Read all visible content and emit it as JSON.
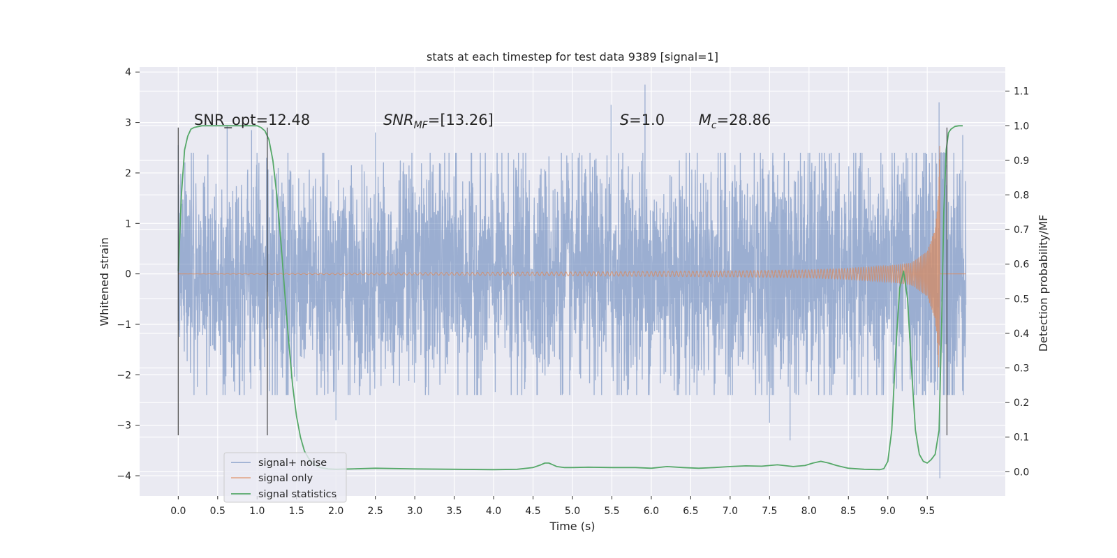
{
  "chart_data": {
    "type": "line",
    "title": "stats at each timestep for test data 9389 [signal=1]",
    "xlabel": "Time (s)",
    "ylabel": "Whitened strain",
    "y2label": "Detection probability/MF",
    "xlim": [
      -0.49,
      10.49
    ],
    "ylim": [
      -4.4,
      4.1
    ],
    "y2lim": [
      -0.07,
      1.17
    ],
    "xticks": [
      0.0,
      0.5,
      1.0,
      1.5,
      2.0,
      2.5,
      3.0,
      3.5,
      4.0,
      4.5,
      5.0,
      5.5,
      6.0,
      6.5,
      7.0,
      7.5,
      8.0,
      8.5,
      9.0,
      9.5
    ],
    "xtick_labels": [
      "0.0",
      "0.5",
      "1.0",
      "1.5",
      "2.0",
      "2.5",
      "3.0",
      "3.5",
      "4.0",
      "4.5",
      "5.0",
      "5.5",
      "6.0",
      "6.5",
      "7.0",
      "7.5",
      "8.0",
      "8.5",
      "9.0",
      "9.5"
    ],
    "yticks": [
      -4,
      -3,
      -2,
      -1,
      0,
      1,
      2,
      3,
      4
    ],
    "ytick_labels": [
      "−4",
      "−3",
      "−2",
      "−1",
      "0",
      "1",
      "2",
      "3",
      "4"
    ],
    "y2ticks": [
      0.0,
      0.1,
      0.2,
      0.3,
      0.4,
      0.5,
      0.6,
      0.7,
      0.8,
      0.9,
      1.0,
      1.1
    ],
    "y2tick_labels": [
      "0.0",
      "0.1",
      "0.2",
      "0.3",
      "0.4",
      "0.5",
      "0.6",
      "0.7",
      "0.8",
      "0.9",
      "1.0",
      "1.1"
    ],
    "grid": true,
    "legend_position": "lower-left",
    "annotations": [
      {
        "text": "SNR_opt=12.48",
        "x": 0.2,
        "y": 2.95
      },
      {
        "text": "SNR",
        "sub": "MF",
        "after": "=[13.26]",
        "italic": true,
        "x": 2.6,
        "y": 2.95
      },
      {
        "text": "S",
        "after": "=1.0",
        "italic": true,
        "x": 5.6,
        "y": 2.95
      },
      {
        "text": "M",
        "sub": "c",
        "after": "=28.86",
        "italic": true,
        "x": 6.6,
        "y": 2.95
      }
    ],
    "vlines": [
      {
        "x": 0.0,
        "ymin": -3.2,
        "ymax": 2.9
      },
      {
        "x": 1.13,
        "ymin": -3.2,
        "ymax": 2.9
      },
      {
        "x": 9.75,
        "ymin": -3.2,
        "ymax": 2.9
      }
    ],
    "series": [
      {
        "name": "signal+ noise",
        "color": "#4c72b0",
        "axis": "left",
        "x_range": [
          0.0,
          9.99
        ],
        "amplitude_envelope": {
          "x": [
            0.0,
            1.4,
            4.5,
            6.5,
            8.5,
            9.3,
            9.55,
            9.65,
            9.99
          ],
          "y": [
            2.0,
            2.0,
            2.0,
            2.1,
            2.2,
            2.3,
            2.6,
            3.3,
            2.0
          ]
        },
        "peaks": [
          {
            "x": 0.0,
            "y": 2.55
          },
          {
            "x": 0.62,
            "y": 2.95
          },
          {
            "x": 0.93,
            "y": 2.85
          },
          {
            "x": 2.0,
            "y": -2.9
          },
          {
            "x": 2.5,
            "y": 2.8
          },
          {
            "x": 5.49,
            "y": 3.35
          },
          {
            "x": 5.92,
            "y": 3.75
          },
          {
            "x": 7.5,
            "y": -2.95
          },
          {
            "x": 7.76,
            "y": -3.3
          },
          {
            "x": 9.65,
            "y": 3.4
          },
          {
            "x": 9.66,
            "y": -4.05
          },
          {
            "x": 9.95,
            "y": 2.75
          }
        ]
      },
      {
        "name": "signal only",
        "color": "#dd8452",
        "axis": "left",
        "model": "chirp",
        "t_merger": 9.66,
        "envelope": {
          "x": [
            0.0,
            5.0,
            7.0,
            8.0,
            8.5,
            9.0,
            9.3,
            9.5,
            9.6,
            9.63,
            9.66,
            9.68,
            9.99
          ],
          "y": [
            0.0,
            0.04,
            0.06,
            0.08,
            0.11,
            0.16,
            0.22,
            0.45,
            0.9,
            1.4,
            2.6,
            0.0,
            0.0
          ]
        }
      },
      {
        "name": "signal statistics",
        "color": "#55a868",
        "axis": "right",
        "x": [
          0.0,
          0.04,
          0.08,
          0.12,
          0.16,
          0.2,
          0.3,
          0.4,
          0.5,
          0.6,
          0.7,
          0.8,
          0.9,
          1.0,
          1.05,
          1.1,
          1.15,
          1.2,
          1.25,
          1.3,
          1.35,
          1.4,
          1.45,
          1.5,
          1.55,
          1.6,
          1.65,
          1.7,
          1.75,
          1.8,
          1.9,
          2.0,
          2.2,
          2.5,
          3.0,
          3.5,
          4.0,
          4.3,
          4.5,
          4.6,
          4.65,
          4.7,
          4.75,
          4.8,
          4.9,
          5.0,
          5.2,
          5.5,
          5.8,
          6.0,
          6.2,
          6.4,
          6.6,
          6.8,
          7.0,
          7.2,
          7.4,
          7.6,
          7.8,
          7.95,
          8.05,
          8.15,
          8.25,
          8.35,
          8.5,
          8.7,
          8.9,
          8.95,
          9.0,
          9.05,
          9.1,
          9.15,
          9.2,
          9.25,
          9.3,
          9.35,
          9.4,
          9.45,
          9.5,
          9.55,
          9.6,
          9.65,
          9.68,
          9.71,
          9.74,
          9.77,
          9.8,
          9.85,
          9.9,
          9.95
        ],
        "y": [
          0.58,
          0.8,
          0.93,
          0.97,
          0.99,
          0.995,
          1.0,
          1.0,
          1.0,
          1.0,
          1.0,
          1.0,
          1.0,
          1.0,
          0.995,
          0.985,
          0.96,
          0.9,
          0.8,
          0.67,
          0.52,
          0.38,
          0.25,
          0.16,
          0.1,
          0.06,
          0.04,
          0.025,
          0.018,
          0.012,
          0.008,
          0.007,
          0.008,
          0.01,
          0.008,
          0.007,
          0.006,
          0.007,
          0.012,
          0.02,
          0.025,
          0.025,
          0.02,
          0.015,
          0.012,
          0.012,
          0.013,
          0.012,
          0.012,
          0.01,
          0.015,
          0.012,
          0.01,
          0.012,
          0.015,
          0.017,
          0.016,
          0.02,
          0.015,
          0.018,
          0.025,
          0.03,
          0.025,
          0.018,
          0.01,
          0.007,
          0.006,
          0.009,
          0.03,
          0.12,
          0.35,
          0.53,
          0.58,
          0.5,
          0.3,
          0.12,
          0.05,
          0.03,
          0.025,
          0.035,
          0.05,
          0.12,
          0.4,
          0.75,
          0.93,
          0.98,
          0.99,
          0.998,
          1.0,
          1.0
        ]
      }
    ]
  }
}
